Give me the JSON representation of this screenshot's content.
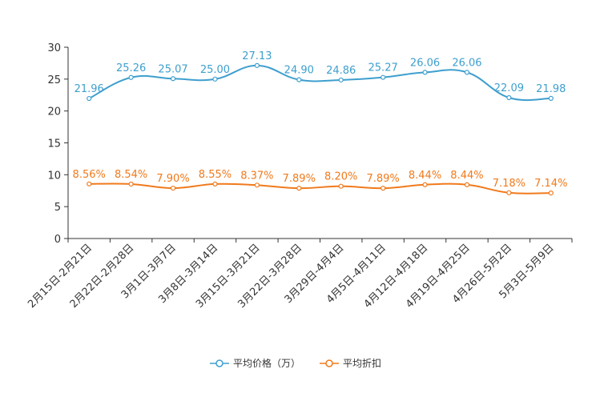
{
  "chart_data": {
    "type": "line",
    "categories": [
      "2月15日-2月21日",
      "2月22日-2月28日",
      "3月1日-3月7日",
      "3月8日-3月14日",
      "3月15日-3月21日",
      "3月22日-3月28日",
      "3月29日-4月4日",
      "4月5日-4月11日",
      "4月12日-4月18日",
      "4月19日-4月25日",
      "4月26日-5月2日",
      "5月3日-5月9日"
    ],
    "series": [
      {
        "name": "平均价格（万）",
        "color": "#3e9fce",
        "values": [
          21.96,
          25.26,
          25.07,
          25.0,
          27.13,
          24.9,
          24.86,
          25.27,
          26.06,
          26.06,
          22.09,
          21.98
        ],
        "labels": [
          "21.96",
          "25.26",
          "25.07",
          "25.00",
          "27.13",
          "24.90",
          "24.86",
          "25.27",
          "26.06",
          "26.06",
          "22.09",
          "21.98"
        ]
      },
      {
        "name": "平均折扣",
        "color": "#f07a1c",
        "values": [
          8.56,
          8.54,
          7.9,
          8.55,
          8.37,
          7.89,
          8.2,
          7.89,
          8.44,
          8.44,
          7.18,
          7.14
        ],
        "labels": [
          "8.56%",
          "8.54%",
          "7.90%",
          "8.55%",
          "8.37%",
          "7.89%",
          "8.20%",
          "7.89%",
          "8.44%",
          "8.44%",
          "7.18%",
          "7.14%"
        ]
      }
    ],
    "ylim": [
      0,
      30
    ],
    "yticks": [
      "0",
      "5",
      "10",
      "15",
      "20",
      "25",
      "30"
    ],
    "legend_position": "bottom-center",
    "grid": false,
    "title": "",
    "xlabel": "",
    "ylabel": ""
  }
}
